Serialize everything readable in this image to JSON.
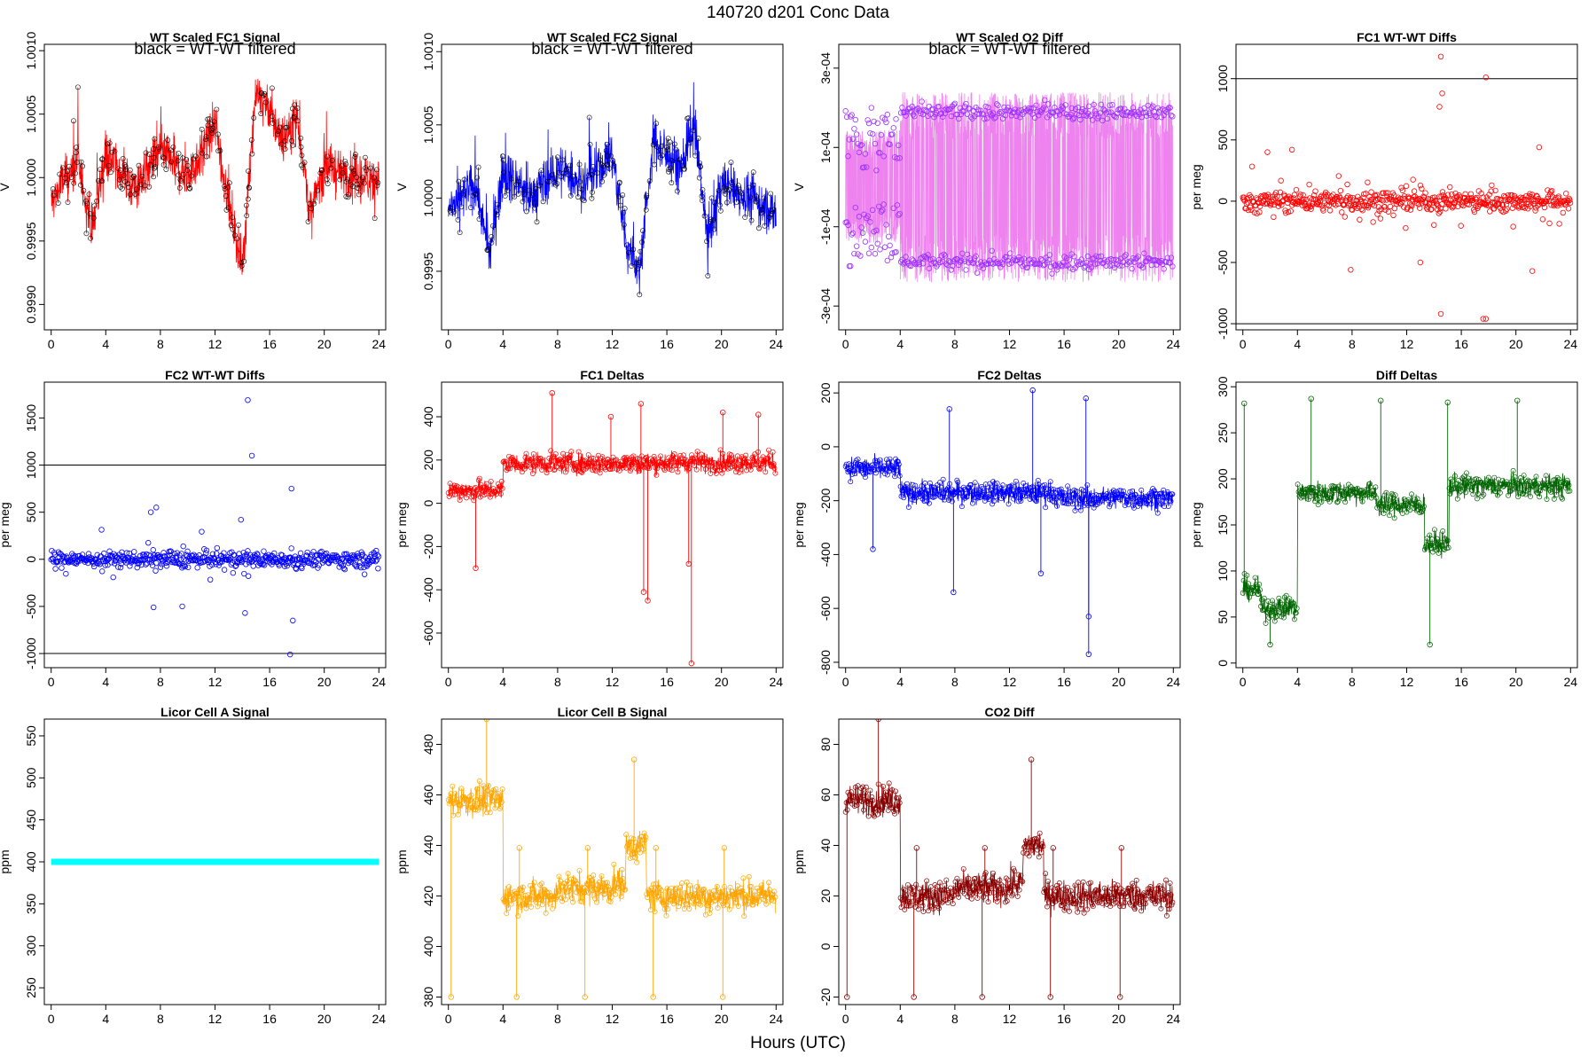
{
  "figure": {
    "title": "140720    d201    Conc Data",
    "xlabel": "Hours (UTC)",
    "xticks": [
      0,
      4,
      8,
      12,
      16,
      20,
      24
    ],
    "xlim": [
      -0.5,
      24.5
    ]
  },
  "chart_data": [
    {
      "type": "line",
      "title": "WT Scaled FC1 Signal",
      "ylabel": "V",
      "note": "black = WT-WT filtered",
      "color": "#ff0000",
      "ylim": [
        0.9988,
        1.00105
      ],
      "yticks": [
        0.999,
        0.9995,
        1.0,
        1.0005,
        1.001
      ],
      "ytick_labels": [
        "0.9990",
        "0.9995",
        "1.0000",
        "1.0005",
        "1.0010"
      ],
      "base_profile": [
        [
          0,
          0.9998
        ],
        [
          1,
          1.0
        ],
        [
          2,
          1.0001
        ],
        [
          3,
          0.9996
        ],
        [
          4,
          1.0002
        ],
        [
          6,
          0.9999
        ],
        [
          8,
          1.0002
        ],
        [
          10,
          1.0
        ],
        [
          12,
          1.0004
        ],
        [
          13,
          0.9998
        ],
        [
          14,
          0.9993
        ],
        [
          15,
          1.0007
        ],
        [
          17,
          1.0003
        ],
        [
          18,
          1.0005
        ],
        [
          19,
          0.9997
        ],
        [
          20,
          1.0001
        ],
        [
          22,
          1.0
        ],
        [
          24,
          1.0
        ]
      ],
      "noise": 0.00018,
      "spike": 0.0003,
      "markers": "black-circles"
    },
    {
      "type": "line",
      "title": "WT Scaled FC2 Signal",
      "ylabel": "V",
      "note": "black = WT-WT filtered",
      "color": "#0000ff",
      "ylim": [
        0.9991,
        1.00105
      ],
      "yticks": [
        0.9995,
        1.0,
        1.0005,
        1.001
      ],
      "ytick_labels": [
        "0.9995",
        "1.0000",
        "1.0005",
        "1.0010"
      ],
      "base_profile": [
        [
          0,
          0.9999
        ],
        [
          2,
          1.0001
        ],
        [
          3,
          0.9996
        ],
        [
          4,
          1.0002
        ],
        [
          6,
          1.0
        ],
        [
          8,
          1.0002
        ],
        [
          10,
          1.0001
        ],
        [
          12,
          1.0003
        ],
        [
          13,
          0.9997
        ],
        [
          14,
          0.9995
        ],
        [
          15,
          1.0004
        ],
        [
          17,
          1.0002
        ],
        [
          18,
          1.0005
        ],
        [
          19,
          0.9997
        ],
        [
          20,
          1.0001
        ],
        [
          22,
          1.0
        ],
        [
          24,
          0.9999
        ]
      ],
      "noise": 0.00016,
      "spike": 0.00025,
      "markers": "black-circles"
    },
    {
      "type": "line",
      "title": "WT Scaled O2 Diff",
      "ylabel": "V",
      "note": "black = WT-WT filtered",
      "color": "#ee82ee",
      "marker_color": "#9b30ff",
      "ylim": [
        -0.00036,
        0.00036
      ],
      "yticks": [
        -0.0003,
        -0.0001,
        0.0001,
        0.0003
      ],
      "ytick_labels": [
        "-3e-04",
        "-1e-04",
        "1e-04",
        "3e-04"
      ],
      "upper_level": 0.00019,
      "lower_level": -0.00019,
      "band_start": 4,
      "early_scatter": [
        -0.00012,
        0.00012
      ]
    },
    {
      "type": "scatter",
      "title": "FC1 WT-WT Diffs",
      "ylabel": "per meg",
      "color": "#ff0000",
      "ylim": [
        -1050,
        1280
      ],
      "yticks": [
        -1000,
        -500,
        0,
        500,
        1000
      ],
      "ytick_labels": [
        "-1000",
        "-500",
        "0",
        "500",
        "1000"
      ],
      "hlines": [
        1000,
        -1000
      ],
      "center": 0,
      "spread": 110,
      "outliers": [
        [
          14.5,
          1180
        ],
        [
          14.6,
          880
        ],
        [
          14.4,
          770
        ],
        [
          17.8,
          1010
        ],
        [
          14.5,
          -920
        ],
        [
          17.6,
          -960
        ],
        [
          17.8,
          -960
        ],
        [
          1.8,
          400
        ],
        [
          7.9,
          -560
        ],
        [
          21.2,
          -570
        ],
        [
          21.7,
          440
        ],
        [
          13.0,
          -500
        ],
        [
          3.6,
          420
        ]
      ]
    },
    {
      "type": "scatter",
      "title": "FC2 WT-WT Diffs",
      "ylabel": "per meg",
      "color": "#0000ff",
      "ylim": [
        -1150,
        1880
      ],
      "yticks": [
        -1000,
        -500,
        0,
        500,
        1000,
        1500
      ],
      "ytick_labels": [
        "-1000",
        "-500",
        "0",
        "500",
        "1000",
        "1500"
      ],
      "hlines": [
        1000,
        -1000
      ],
      "center": 0,
      "spread": 110,
      "outliers": [
        [
          14.4,
          1690
        ],
        [
          14.7,
          1100
        ],
        [
          17.6,
          750
        ],
        [
          17.5,
          -1010
        ],
        [
          17.7,
          -650
        ],
        [
          7.7,
          550
        ],
        [
          7.3,
          500
        ],
        [
          7.5,
          -510
        ],
        [
          9.6,
          -500
        ],
        [
          14.2,
          -570
        ],
        [
          13.9,
          420
        ]
      ]
    },
    {
      "type": "line",
      "title": "FC1 Deltas",
      "ylabel": "per meg",
      "color": "#ff0000",
      "ylim": [
        -760,
        560
      ],
      "yticks": [
        -600,
        -400,
        -200,
        0,
        200,
        400
      ],
      "ytick_labels": [
        "-600",
        "-400",
        "-200",
        "0",
        "200",
        "400"
      ],
      "levels": [
        [
          0,
          4,
          60
        ],
        [
          4,
          15.3,
          185
        ],
        [
          15.3,
          24,
          190
        ]
      ],
      "noise": 45,
      "spikes": [
        [
          17.8,
          -740
        ],
        [
          14.6,
          -450
        ],
        [
          14.3,
          -410
        ],
        [
          7.6,
          510
        ],
        [
          17.6,
          -280
        ],
        [
          2.0,
          -300
        ],
        [
          20.1,
          420
        ],
        [
          14.1,
          460
        ],
        [
          11.9,
          400
        ],
        [
          22.7,
          410
        ]
      ]
    },
    {
      "type": "line",
      "title": "FC2 Deltas",
      "ylabel": "per meg",
      "color": "#0000ff",
      "ylim": [
        -820,
        240
      ],
      "yticks": [
        -800,
        -600,
        -400,
        -200,
        0,
        200
      ],
      "ytick_labels": [
        "-800",
        "-600",
        "-400",
        "-200",
        "0",
        "200"
      ],
      "levels": [
        [
          0,
          4,
          -80
        ],
        [
          4,
          15.3,
          -170
        ],
        [
          15.3,
          24,
          -190
        ]
      ],
      "noise": 40,
      "spikes": [
        [
          17.8,
          -770
        ],
        [
          17.8,
          -630
        ],
        [
          7.9,
          -540
        ],
        [
          13.7,
          210
        ],
        [
          17.6,
          180
        ],
        [
          7.6,
          140
        ],
        [
          14.3,
          -470
        ],
        [
          2.0,
          -380
        ]
      ]
    },
    {
      "type": "line",
      "title": "Diff Deltas",
      "ylabel": "per meg",
      "color": "#006400",
      "ylim": [
        -5,
        305
      ],
      "yticks": [
        0,
        50,
        100,
        150,
        200,
        250,
        300
      ],
      "ytick_labels": [
        "0",
        "50",
        "100",
        "150",
        "200",
        "250",
        "300"
      ],
      "levels": [
        [
          0,
          1.3,
          80
        ],
        [
          1.3,
          4,
          60
        ],
        [
          4,
          9.8,
          185
        ],
        [
          9.8,
          13.3,
          172
        ],
        [
          13.3,
          15.1,
          130
        ],
        [
          15.1,
          24,
          192
        ]
      ],
      "noise": 12,
      "spikes": [
        [
          0.1,
          282
        ],
        [
          5.0,
          287
        ],
        [
          10.1,
          285
        ],
        [
          15.0,
          283
        ],
        [
          20.1,
          285
        ],
        [
          13.7,
          20
        ],
        [
          2.0,
          20
        ]
      ]
    },
    {
      "type": "line",
      "title": "Licor Cell A Signal",
      "ylabel": "ppm",
      "color": "#00ffff",
      "ylim": [
        230,
        570
      ],
      "yticks": [
        250,
        300,
        350,
        400,
        450,
        500,
        550
      ],
      "ytick_labels": [
        "250",
        "300",
        "350",
        "400",
        "450",
        "500",
        "550"
      ],
      "levels": [
        [
          0,
          24,
          400
        ]
      ],
      "noise": 0,
      "spikes": [],
      "thick": true
    },
    {
      "type": "line",
      "title": "Licor Cell B Signal",
      "ylabel": "ppm",
      "color": "#ffa500",
      "ylim": [
        377,
        490
      ],
      "yticks": [
        380,
        400,
        420,
        440,
        460,
        480
      ],
      "ytick_labels": [
        "380",
        "400",
        "420",
        "440",
        "460",
        "480"
      ],
      "levels": [
        [
          0,
          4,
          458
        ],
        [
          4,
          8,
          420
        ],
        [
          8,
          12,
          423
        ],
        [
          12,
          13,
          425
        ],
        [
          13,
          14.5,
          440
        ],
        [
          14.5,
          24,
          420
        ]
      ],
      "noise": 6,
      "spikes": [
        [
          0.2,
          380
        ],
        [
          5.0,
          380
        ],
        [
          10.0,
          380
        ],
        [
          15.0,
          380
        ],
        [
          20.1,
          380
        ],
        [
          5.2,
          439
        ],
        [
          10.2,
          439
        ],
        [
          15.2,
          439
        ],
        [
          20.2,
          439
        ],
        [
          13.6,
          474
        ],
        [
          2.8,
          490
        ]
      ]
    },
    {
      "type": "line",
      "title": "CO2 Diff",
      "ylabel": "ppm",
      "color": "#8b0000",
      "ylim": [
        -23,
        90
      ],
      "yticks": [
        -20,
        0,
        20,
        40,
        60,
        80
      ],
      "ytick_labels": [
        "-20",
        "0",
        "20",
        "40",
        "60",
        "80"
      ],
      "levels": [
        [
          0,
          4,
          58
        ],
        [
          4,
          8,
          20
        ],
        [
          8,
          12,
          23
        ],
        [
          12,
          13,
          25
        ],
        [
          13,
          14.5,
          40
        ],
        [
          14.5,
          24,
          20
        ]
      ],
      "noise": 6,
      "spikes": [
        [
          0.1,
          -20
        ],
        [
          5.0,
          -20
        ],
        [
          10.0,
          -20
        ],
        [
          15.0,
          -20
        ],
        [
          20.1,
          -20
        ],
        [
          5.2,
          39
        ],
        [
          10.2,
          39
        ],
        [
          15.2,
          39
        ],
        [
          20.2,
          39
        ],
        [
          13.6,
          74
        ],
        [
          2.4,
          90
        ]
      ]
    }
  ]
}
